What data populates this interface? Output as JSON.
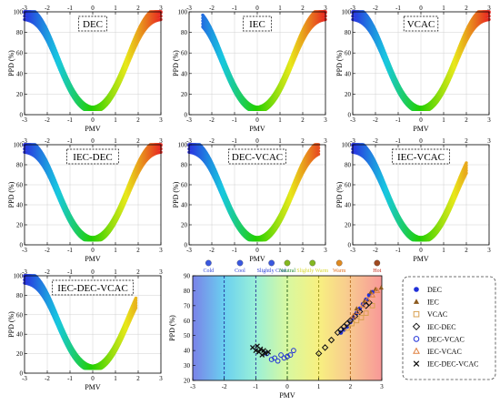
{
  "chart_data": [
    {
      "type": "scatter",
      "title": "DEC",
      "xlabel": "PMV",
      "ylabel": "PPD (%)",
      "xlim": [
        -3,
        3
      ],
      "ylim": [
        0,
        100
      ],
      "xticks": [
        "-3",
        "-2",
        "-1",
        "0",
        "1",
        "2",
        "3"
      ],
      "yticks": [
        "0",
        "20",
        "40",
        "60",
        "80",
        "100"
      ],
      "pmv_range": [
        -3,
        3
      ],
      "grid": true,
      "curve": "PPD = 100 - 95*exp(-0.03353*PMV^4 - 0.2179*PMV^2)",
      "colormap": [
        "#2a2ee0",
        "#18c8e0",
        "#22d000",
        "#e8e81a",
        "#e82a22"
      ]
    },
    {
      "type": "scatter",
      "title": "IEC",
      "xlabel": "PMV",
      "ylabel": "PPD (%)",
      "xlim": [
        -3,
        3
      ],
      "ylim": [
        0,
        100
      ],
      "xticks": [
        "-3",
        "-2",
        "-1",
        "0",
        "1",
        "2",
        "3"
      ],
      "yticks": [
        "0",
        "20",
        "40",
        "60",
        "80",
        "100"
      ],
      "pmv_range": [
        -2.4,
        3
      ],
      "grid": true,
      "colormap": [
        "#2a2ee0",
        "#18c8e0",
        "#22d000",
        "#e8e81a",
        "#e82a22"
      ]
    },
    {
      "type": "scatter",
      "title": "VCAC",
      "xlabel": "PMV",
      "ylabel": "PPD (%)",
      "xlim": [
        -3,
        3
      ],
      "ylim": [
        0,
        100
      ],
      "xticks": [
        "-3",
        "-2",
        "-1",
        "0",
        "1",
        "2",
        "3"
      ],
      "yticks": [
        "0",
        "20",
        "40",
        "60",
        "80",
        "100"
      ],
      "pmv_range": [
        -3,
        3
      ],
      "grid": true,
      "colormap": [
        "#2a2ee0",
        "#18c8e0",
        "#22d000",
        "#e8e81a",
        "#e82a22"
      ]
    },
    {
      "type": "scatter",
      "title": "IEC-DEC",
      "xlabel": "PMV",
      "ylabel": "PPD (%)",
      "xlim": [
        -3,
        3
      ],
      "ylim": [
        0,
        100
      ],
      "xticks": [
        "-3",
        "-2",
        "-1",
        "0",
        "1",
        "2",
        "3"
      ],
      "yticks": [
        "0",
        "20",
        "40",
        "60",
        "80",
        "100"
      ],
      "pmv_range": [
        -3,
        3
      ],
      "grid": true,
      "colormap": [
        "#2a2ee0",
        "#18c8e0",
        "#22d000",
        "#e8e81a",
        "#e82a22"
      ]
    },
    {
      "type": "scatter",
      "title": "DEC-VCAC",
      "xlabel": "PMV",
      "ylabel": "PPD (%)",
      "xlim": [
        -3,
        3
      ],
      "ylim": [
        0,
        100
      ],
      "xticks": [
        "-3",
        "-2",
        "-1",
        "0",
        "1",
        "2",
        "3"
      ],
      "yticks": [
        "0",
        "20",
        "40",
        "60",
        "80",
        "100"
      ],
      "pmv_range": [
        -3,
        2.7
      ],
      "grid": true,
      "colormap": [
        "#2a2ee0",
        "#18c8e0",
        "#22d000",
        "#e8e81a",
        "#e82a22"
      ]
    },
    {
      "type": "scatter",
      "title": "IEC-VCAC",
      "xlabel": "PMV",
      "ylabel": "PPD (%)",
      "xlim": [
        -3,
        3
      ],
      "ylim": [
        0,
        100
      ],
      "xticks": [
        "-3",
        "-2",
        "-1",
        "0",
        "1",
        "2",
        "3"
      ],
      "yticks": [
        "0",
        "20",
        "40",
        "60",
        "80",
        "100"
      ],
      "pmv_range": [
        -3,
        2.0
      ],
      "grid": true,
      "colormap": [
        "#2a2ee0",
        "#18c8e0",
        "#22d000",
        "#e8e81a",
        "#e82a22"
      ]
    },
    {
      "type": "scatter",
      "title": "IEC-DEC-VCAC",
      "xlabel": "PMV",
      "ylabel": "PPD (%)",
      "xlim": [
        -3,
        3
      ],
      "ylim": [
        0,
        100
      ],
      "xticks": [
        "-3",
        "-2",
        "-1",
        "0",
        "1",
        "2",
        "3"
      ],
      "yticks": [
        "0",
        "20",
        "40",
        "60",
        "80",
        "100"
      ],
      "pmv_range": [
        -3,
        1.9
      ],
      "grid": true,
      "colormap": [
        "#2a2ee0",
        "#18c8e0",
        "#22d000",
        "#e8e81a",
        "#e82a22"
      ]
    },
    {
      "type": "scatter",
      "title": "",
      "xlabel": "PMV",
      "ylabel": "PPD (%)",
      "xlim": [
        -3,
        3
      ],
      "ylim": [
        20,
        90
      ],
      "xticks": [
        "-3",
        "-2",
        "-1",
        "0",
        "1",
        "2",
        "3"
      ],
      "yticks": [
        "20",
        "30",
        "40",
        "50",
        "60",
        "70",
        "80",
        "90"
      ],
      "zones": [
        {
          "label": "Cold",
          "center": -2.5,
          "color": "#2b3fd6"
        },
        {
          "label": "Cool",
          "center": -1.5,
          "color": "#2b3fd6"
        },
        {
          "label": "Slightly Cool",
          "center": -0.5,
          "color": "#2b3fd6"
        },
        {
          "label": "Neutral",
          "center": 0.0,
          "color": "#1d8a2a"
        },
        {
          "label": "Slightly Warm",
          "center": 0.8,
          "color": "#d8d830"
        },
        {
          "label": "Warm",
          "center": 1.65,
          "color": "#e07020"
        },
        {
          "label": "Hot",
          "center": 2.85,
          "color": "#c02010"
        }
      ],
      "zone_bounds": [
        -2,
        -1,
        0,
        1,
        2
      ],
      "zone_icon_colors": [
        "#3a58e0",
        "#3a58e0",
        "#3a58e0",
        "#84b820",
        "#84b820",
        "#e08a20",
        "#a04a20"
      ],
      "background_stops": [
        "#7a82e8",
        "#6ad0f0",
        "#9af0d8",
        "#d8f8a0",
        "#f8f080",
        "#f8c890",
        "#f89898"
      ],
      "series": [
        {
          "name": "DEC",
          "marker": "circle-filled",
          "color": "#2030d8",
          "points": [
            [
              1.7,
              52
            ],
            [
              1.8,
              54
            ],
            [
              1.9,
              56
            ],
            [
              2.0,
              59
            ],
            [
              2.1,
              62
            ],
            [
              2.2,
              65
            ],
            [
              2.3,
              68
            ],
            [
              2.4,
              71
            ],
            [
              2.5,
              74
            ],
            [
              2.6,
              77
            ],
            [
              2.7,
              79
            ]
          ]
        },
        {
          "name": "IEC",
          "marker": "triangle-filled",
          "color": "#8b5a1e",
          "points": [
            [
              2.2,
              68
            ],
            [
              2.45,
              73
            ],
            [
              2.65,
              79
            ],
            [
              2.8,
              81
            ],
            [
              2.98,
              82
            ]
          ]
        },
        {
          "name": "VCAC",
          "marker": "square-open",
          "color": "#d8a050",
          "points": [
            [
              1.9,
              55
            ],
            [
              2.05,
              58
            ],
            [
              2.2,
              60
            ],
            [
              2.35,
              62
            ],
            [
              2.5,
              65
            ],
            [
              2.7,
              70
            ]
          ]
        },
        {
          "name": "IEC-DEC",
          "marker": "diamond-open",
          "color": "#111111",
          "points": [
            [
              1.0,
              38
            ],
            [
              1.2,
              42
            ],
            [
              1.4,
              47
            ],
            [
              1.6,
              52
            ],
            [
              1.7,
              54
            ],
            [
              1.8,
              56
            ],
            [
              1.9,
              58
            ],
            [
              2.0,
              60
            ],
            [
              2.15,
              63
            ],
            [
              2.3,
              66
            ],
            [
              2.5,
              70
            ],
            [
              2.6,
              72
            ]
          ]
        },
        {
          "name": "DEC-VCAC",
          "marker": "circle-open",
          "color": "#2030d8",
          "points": [
            [
              -0.65,
              38
            ],
            [
              -0.5,
              34
            ],
            [
              -0.4,
              35
            ],
            [
              -0.3,
              33
            ],
            [
              -0.2,
              37
            ],
            [
              -0.1,
              35
            ],
            [
              0.0,
              36
            ],
            [
              0.1,
              37
            ],
            [
              0.2,
              40
            ]
          ]
        },
        {
          "name": "IEC-VCAC",
          "marker": "triangle-open",
          "color": "#e08040",
          "points": [
            [
              2.1,
              63
            ],
            [
              2.25,
              66
            ],
            [
              2.4,
              70
            ],
            [
              2.55,
              74
            ],
            [
              2.7,
              77
            ],
            [
              2.85,
              80
            ]
          ]
        },
        {
          "name": "IEC-DEC-VCAC",
          "marker": "x",
          "color": "#111111",
          "points": [
            [
              -1.1,
              42
            ],
            [
              -1.0,
              40
            ],
            [
              -0.95,
              43
            ],
            [
              -0.9,
              39
            ],
            [
              -0.85,
              41
            ],
            [
              -0.8,
              37
            ],
            [
              -0.75,
              40
            ],
            [
              -0.7,
              38
            ],
            [
              -0.6,
              39
            ]
          ]
        }
      ]
    }
  ],
  "legend_position": "right"
}
